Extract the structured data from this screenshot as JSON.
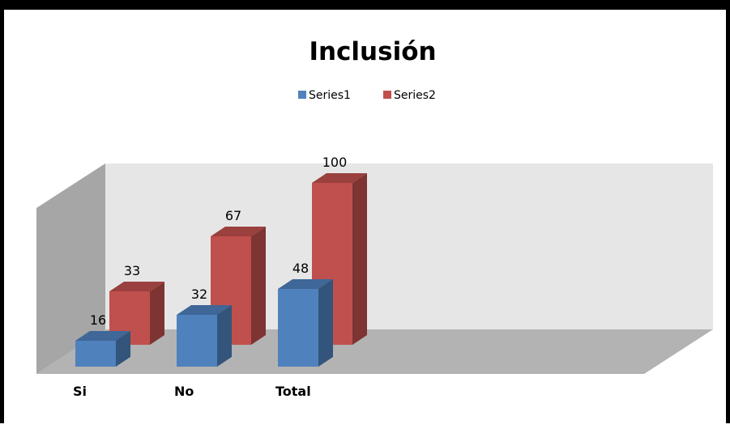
{
  "chart_data": {
    "type": "bar",
    "style": "3d-clustered-column",
    "title": "Inclusión",
    "categories": [
      "Si",
      "No",
      "Total"
    ],
    "series": [
      {
        "name": "Series1",
        "values": [
          16,
          32,
          48
        ],
        "color": "#4f81bd"
      },
      {
        "name": "Series2",
        "values": [
          33,
          67,
          100
        ],
        "color": "#c0504d"
      }
    ],
    "legend": "top",
    "grid": false,
    "ylim": [
      0,
      100
    ],
    "data_labels": true
  }
}
